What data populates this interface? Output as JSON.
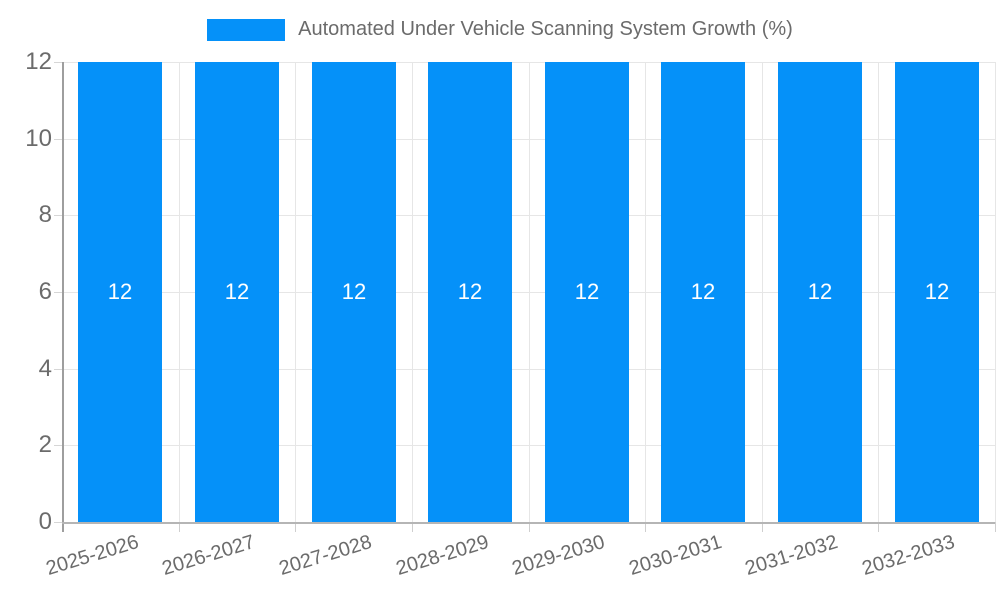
{
  "legend": {
    "label": "Automated Under Vehicle Scanning System Growth (%)"
  },
  "chart_data": {
    "type": "bar",
    "title": "Automated Under Vehicle Scanning System Growth (%)",
    "categories": [
      "2025-2026",
      "2026-2027",
      "2027-2028",
      "2028-2029",
      "2029-2030",
      "2030-2031",
      "2031-2032",
      "2032-2033"
    ],
    "values": [
      12,
      12,
      12,
      12,
      12,
      12,
      12,
      12
    ],
    "bar_labels": [
      "12",
      "12",
      "12",
      "12",
      "12",
      "12",
      "12",
      "12"
    ],
    "xlabel": "",
    "ylabel": "",
    "ylim": [
      0,
      12
    ],
    "yticks": [
      0,
      2,
      4,
      6,
      8,
      10,
      12
    ],
    "grid": true,
    "legend_position": "top",
    "colors": {
      "bar": "#0591f9",
      "bar_label": "#ffffff",
      "grid": "#e6e6e6",
      "axis": "#b5b5b5",
      "tick_text": "#6b6b6b"
    }
  }
}
